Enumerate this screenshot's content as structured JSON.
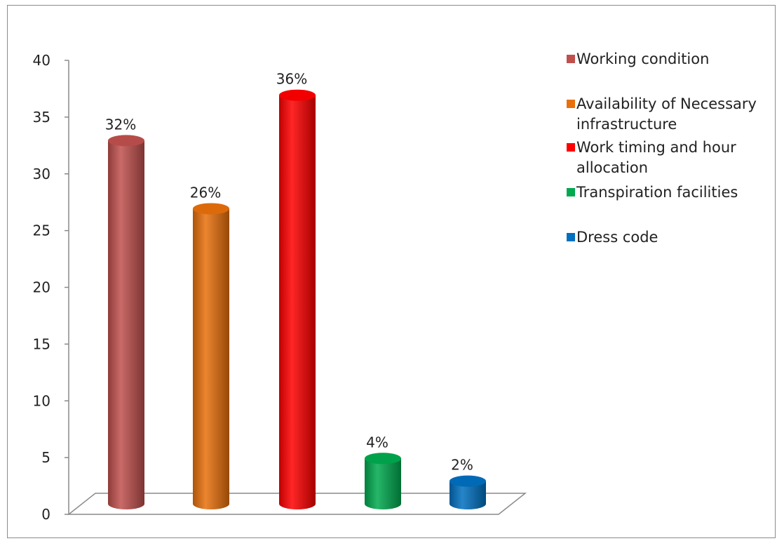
{
  "chart_data": {
    "type": "bar",
    "title": "",
    "xlabel": "",
    "ylabel": "",
    "ylim": [
      0,
      40
    ],
    "yticks": [
      0,
      5,
      10,
      15,
      20,
      25,
      30,
      35,
      40
    ],
    "grid": false,
    "legend_position": "right",
    "categories": [
      "Working condition",
      "Availability of Necessary infrastructure",
      "Work timing and hour allocation",
      "Transpiration facilities",
      "Dress code"
    ],
    "values": [
      32,
      26,
      36,
      4,
      2
    ],
    "data_labels": [
      "32%",
      "26%",
      "36%",
      "4%",
      "2%"
    ],
    "colors": [
      "#c0504d",
      "#e8700c",
      "#ff0000",
      "#00a94f",
      "#0070c0"
    ]
  }
}
